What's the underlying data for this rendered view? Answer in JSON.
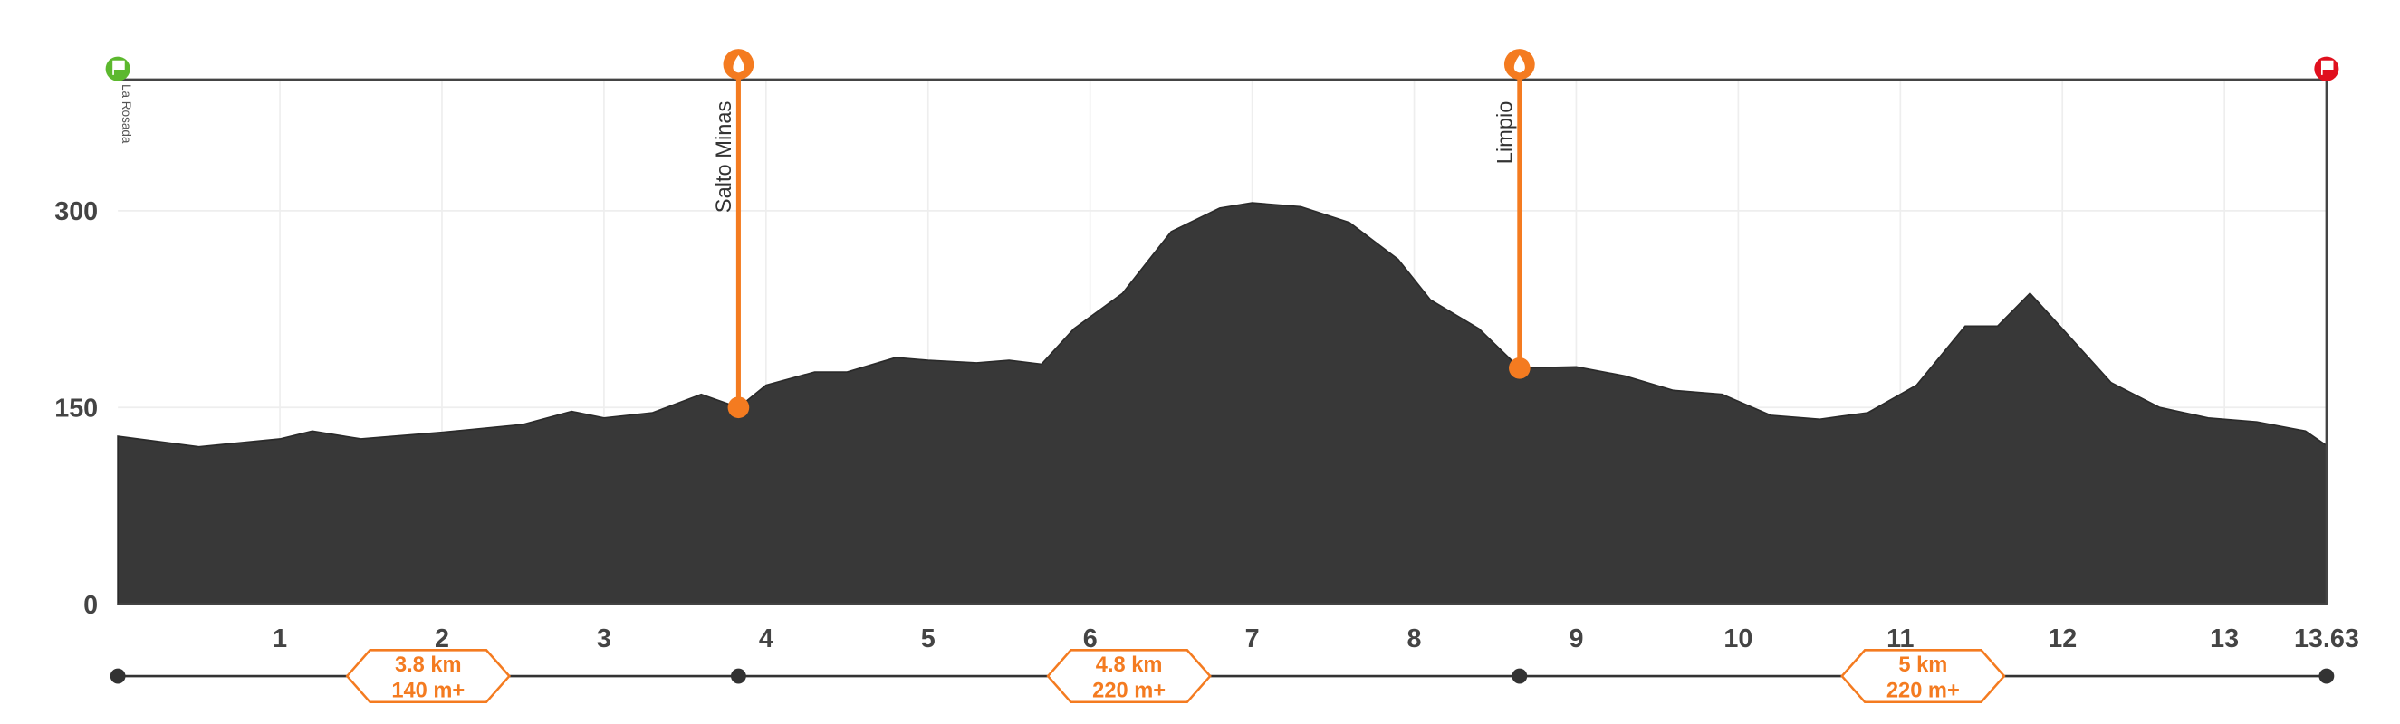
{
  "chart_data": {
    "type": "area",
    "color": "#383838",
    "accent": "#f47b20",
    "x": [
      0,
      0.5,
      1.0,
      1.2,
      1.5,
      2.0,
      2.5,
      2.8,
      3.0,
      3.3,
      3.6,
      3.83,
      4.0,
      4.3,
      4.5,
      4.8,
      5.0,
      5.3,
      5.5,
      5.7,
      5.9,
      6.2,
      6.5,
      6.8,
      7.0,
      7.3,
      7.6,
      7.9,
      8.1,
      8.4,
      8.65,
      9.0,
      9.3,
      9.6,
      9.9,
      10.2,
      10.5,
      10.8,
      11.1,
      11.4,
      11.6,
      11.8,
      12.0,
      12.3,
      12.6,
      12.9,
      13.2,
      13.5,
      13.63
    ],
    "values": [
      128,
      120,
      126,
      132,
      126,
      131,
      137,
      147,
      142,
      146,
      160,
      150,
      167,
      177,
      177,
      188,
      186,
      184,
      186,
      183,
      210,
      237,
      284,
      302,
      306,
      303,
      291,
      263,
      232,
      210,
      180,
      181,
      174,
      163,
      160,
      144,
      141,
      146,
      167,
      212,
      212,
      237,
      210,
      169,
      150,
      142,
      139,
      132,
      121
    ],
    "xlim": [
      0,
      13.63
    ],
    "ylim": [
      0,
      400
    ],
    "xticks": [
      1,
      2,
      3,
      4,
      5,
      6,
      7,
      8,
      9,
      10,
      11,
      12,
      13,
      13.63
    ],
    "yticks": [
      0,
      150,
      300
    ],
    "grid": true,
    "start_label": "La Rosada",
    "waypoints": [
      {
        "name": "Salto Minas",
        "x": 3.83,
        "elevation": 150
      },
      {
        "name": "Limpio",
        "x": 8.65,
        "elevation": 180
      }
    ],
    "segments": [
      {
        "distance": "3.8 km",
        "gain": "140 m+"
      },
      {
        "distance": "4.8 km",
        "gain": "220 m+"
      },
      {
        "distance": "5 km",
        "gain": "220 m+"
      }
    ]
  }
}
